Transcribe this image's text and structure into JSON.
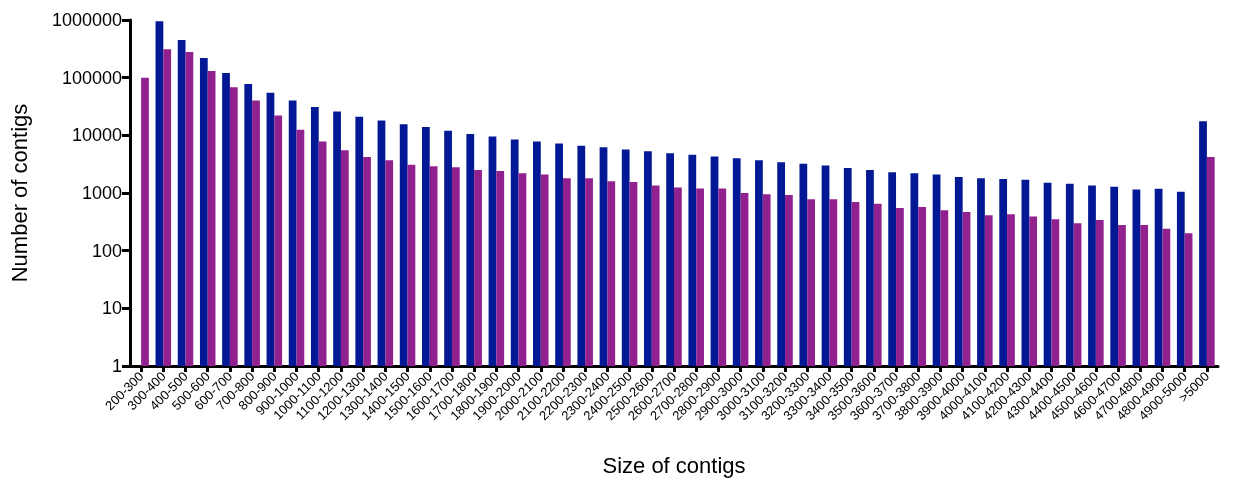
{
  "chart_data": {
    "type": "bar",
    "xlabel": "Size of contigs",
    "ylabel": "Number of contigs",
    "log": "y",
    "grid": false,
    "categories": [
      "200-300",
      "300-400",
      "400-500",
      "500-600",
      "600-700",
      "700-800",
      "800-900",
      "900-1000",
      "1000-1100",
      "1100-1200",
      "1200-1300",
      "1300-1400",
      "1400-1500",
      "1500-1600",
      "1600-1700",
      "1700-1800",
      "1800-1900",
      "1900-2000",
      "2000-2100",
      "2100-2200",
      "2200-2300",
      "2300-2400",
      "2400-2500",
      "2500-2600",
      "2600-2700",
      "2700-2800",
      "2800-2900",
      "2900-3000",
      "3000-3100",
      "3100-3200",
      "3200-3300",
      "3300-3400",
      "3400-3500",
      "3500-3600",
      "3600-3700",
      "3700-3800",
      "3800-3900",
      "3900-4000",
      "4000-4100",
      "4100-4200",
      "4200-4300",
      "4300-4400",
      "4400-4500",
      "4500-4600",
      "4600-4700",
      "4700-4800",
      "4800-4900",
      "4900-5000",
      ">5000"
    ],
    "ylim": [
      1,
      1000000
    ],
    "yticks": [
      1,
      10,
      100,
      1000,
      10000,
      100000,
      1000000
    ],
    "series": [
      {
        "color": "#021894",
        "values": [
          null,
          950000,
          450000,
          220000,
          120000,
          78000,
          55000,
          40000,
          31000,
          26000,
          21000,
          18000,
          15500,
          14000,
          12000,
          10500,
          9500,
          8500,
          7800,
          7200,
          6600,
          6200,
          5700,
          5300,
          4900,
          4600,
          4300,
          4000,
          3700,
          3400,
          3200,
          3000,
          2700,
          2500,
          2300,
          2200,
          2100,
          1900,
          1800,
          1750,
          1700,
          1500,
          1450,
          1350,
          1280,
          1150,
          1180,
          1050,
          17500
        ]
      },
      {
        "color": "#922190",
        "values": [
          100000,
          310000,
          280000,
          130000,
          68000,
          40000,
          22000,
          12500,
          7800,
          5500,
          4200,
          3700,
          3100,
          2900,
          2800,
          2500,
          2400,
          2200,
          2100,
          1800,
          1800,
          1600,
          1550,
          1350,
          1250,
          1200,
          1200,
          1000,
          950,
          920,
          780,
          780,
          700,
          650,
          550,
          570,
          500,
          470,
          410,
          430,
          390,
          350,
          300,
          340,
          280,
          280,
          240,
          200,
          4200
        ]
      }
    ]
  }
}
